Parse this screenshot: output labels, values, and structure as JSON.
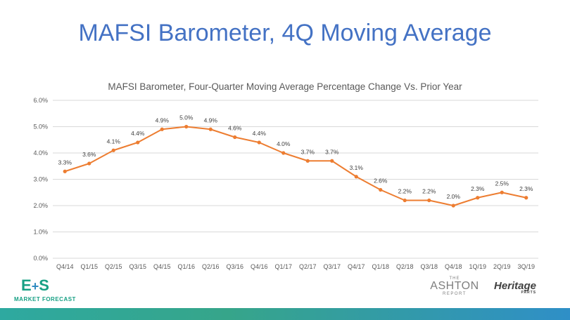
{
  "slide": {
    "title": "MAFSI Barometer, 4Q Moving Average"
  },
  "chart_data": {
    "type": "line",
    "title": "MAFSI Barometer, Four-Quarter Moving Average Percentage Change Vs. Prior Year",
    "categories": [
      "Q4/14",
      "Q1/15",
      "Q2/15",
      "Q3/15",
      "Q4/15",
      "Q1/16",
      "Q2/16",
      "Q3/16",
      "Q4/16",
      "Q1/17",
      "Q2/17",
      "Q3/17",
      "Q4/17",
      "Q1/18",
      "Q2/18",
      "Q3/18",
      "Q4/18",
      "1Q/19",
      "2Q/19",
      "3Q/19"
    ],
    "values": [
      3.3,
      3.6,
      4.1,
      4.4,
      4.9,
      5.0,
      4.9,
      4.6,
      4.4,
      4.0,
      3.7,
      3.7,
      3.1,
      2.6,
      2.2,
      2.2,
      2.0,
      2.3,
      2.5,
      2.3
    ],
    "data_labels": [
      "3.3%",
      "3.6%",
      "4.1%",
      "4.4%",
      "4.9%",
      "5.0%",
      "4.9%",
      "4.6%",
      "4.4%",
      "4.0%",
      "3.7%",
      "3.7%",
      "3.1%",
      "2.6%",
      "2.2%",
      "2.2%",
      "2.0%",
      "2.3%",
      "2.5%",
      "2.3%"
    ],
    "y_ticks": [
      0,
      1,
      2,
      3,
      4,
      5,
      6
    ],
    "y_tick_labels": [
      "0.0%",
      "1.0%",
      "2.0%",
      "3.0%",
      "4.0%",
      "5.0%",
      "6.0%"
    ],
    "ylim": [
      0,
      6
    ],
    "grid": true,
    "line_color": "#ed7d31"
  },
  "logos": {
    "es_e": "E",
    "es_plus": "+",
    "es_s": "S",
    "es_sub": "MARKET FORECAST",
    "ashton_the": "THE",
    "ashton_name": "ASHTON",
    "ashton_report": "REPORT",
    "heritage_name": "Heritage",
    "heritage_sub": "PARTS"
  }
}
